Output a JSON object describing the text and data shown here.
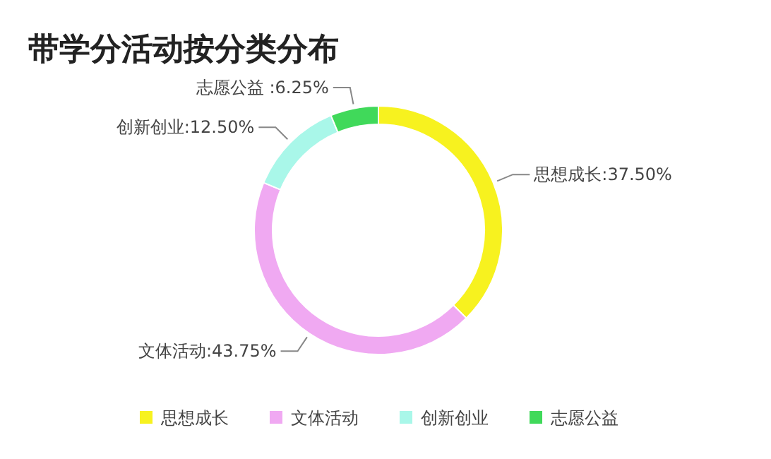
{
  "chart_data": {
    "type": "donut",
    "title": "带学分活动按分类分布",
    "categories": [
      "思想成长",
      "文体活动",
      "创新创业",
      "志愿公益"
    ],
    "values": [
      37.5,
      43.75,
      12.5,
      6.25
    ],
    "value_labels": [
      "思想成长:37.50%",
      "文体活动:43.75%",
      "创新创业:12.50%",
      "志愿公益 :6.25%"
    ],
    "colors": [
      "#f7f21f",
      "#f0a9f2",
      "#a9f7e9",
      "#40d95a"
    ],
    "legend": "bottom"
  }
}
